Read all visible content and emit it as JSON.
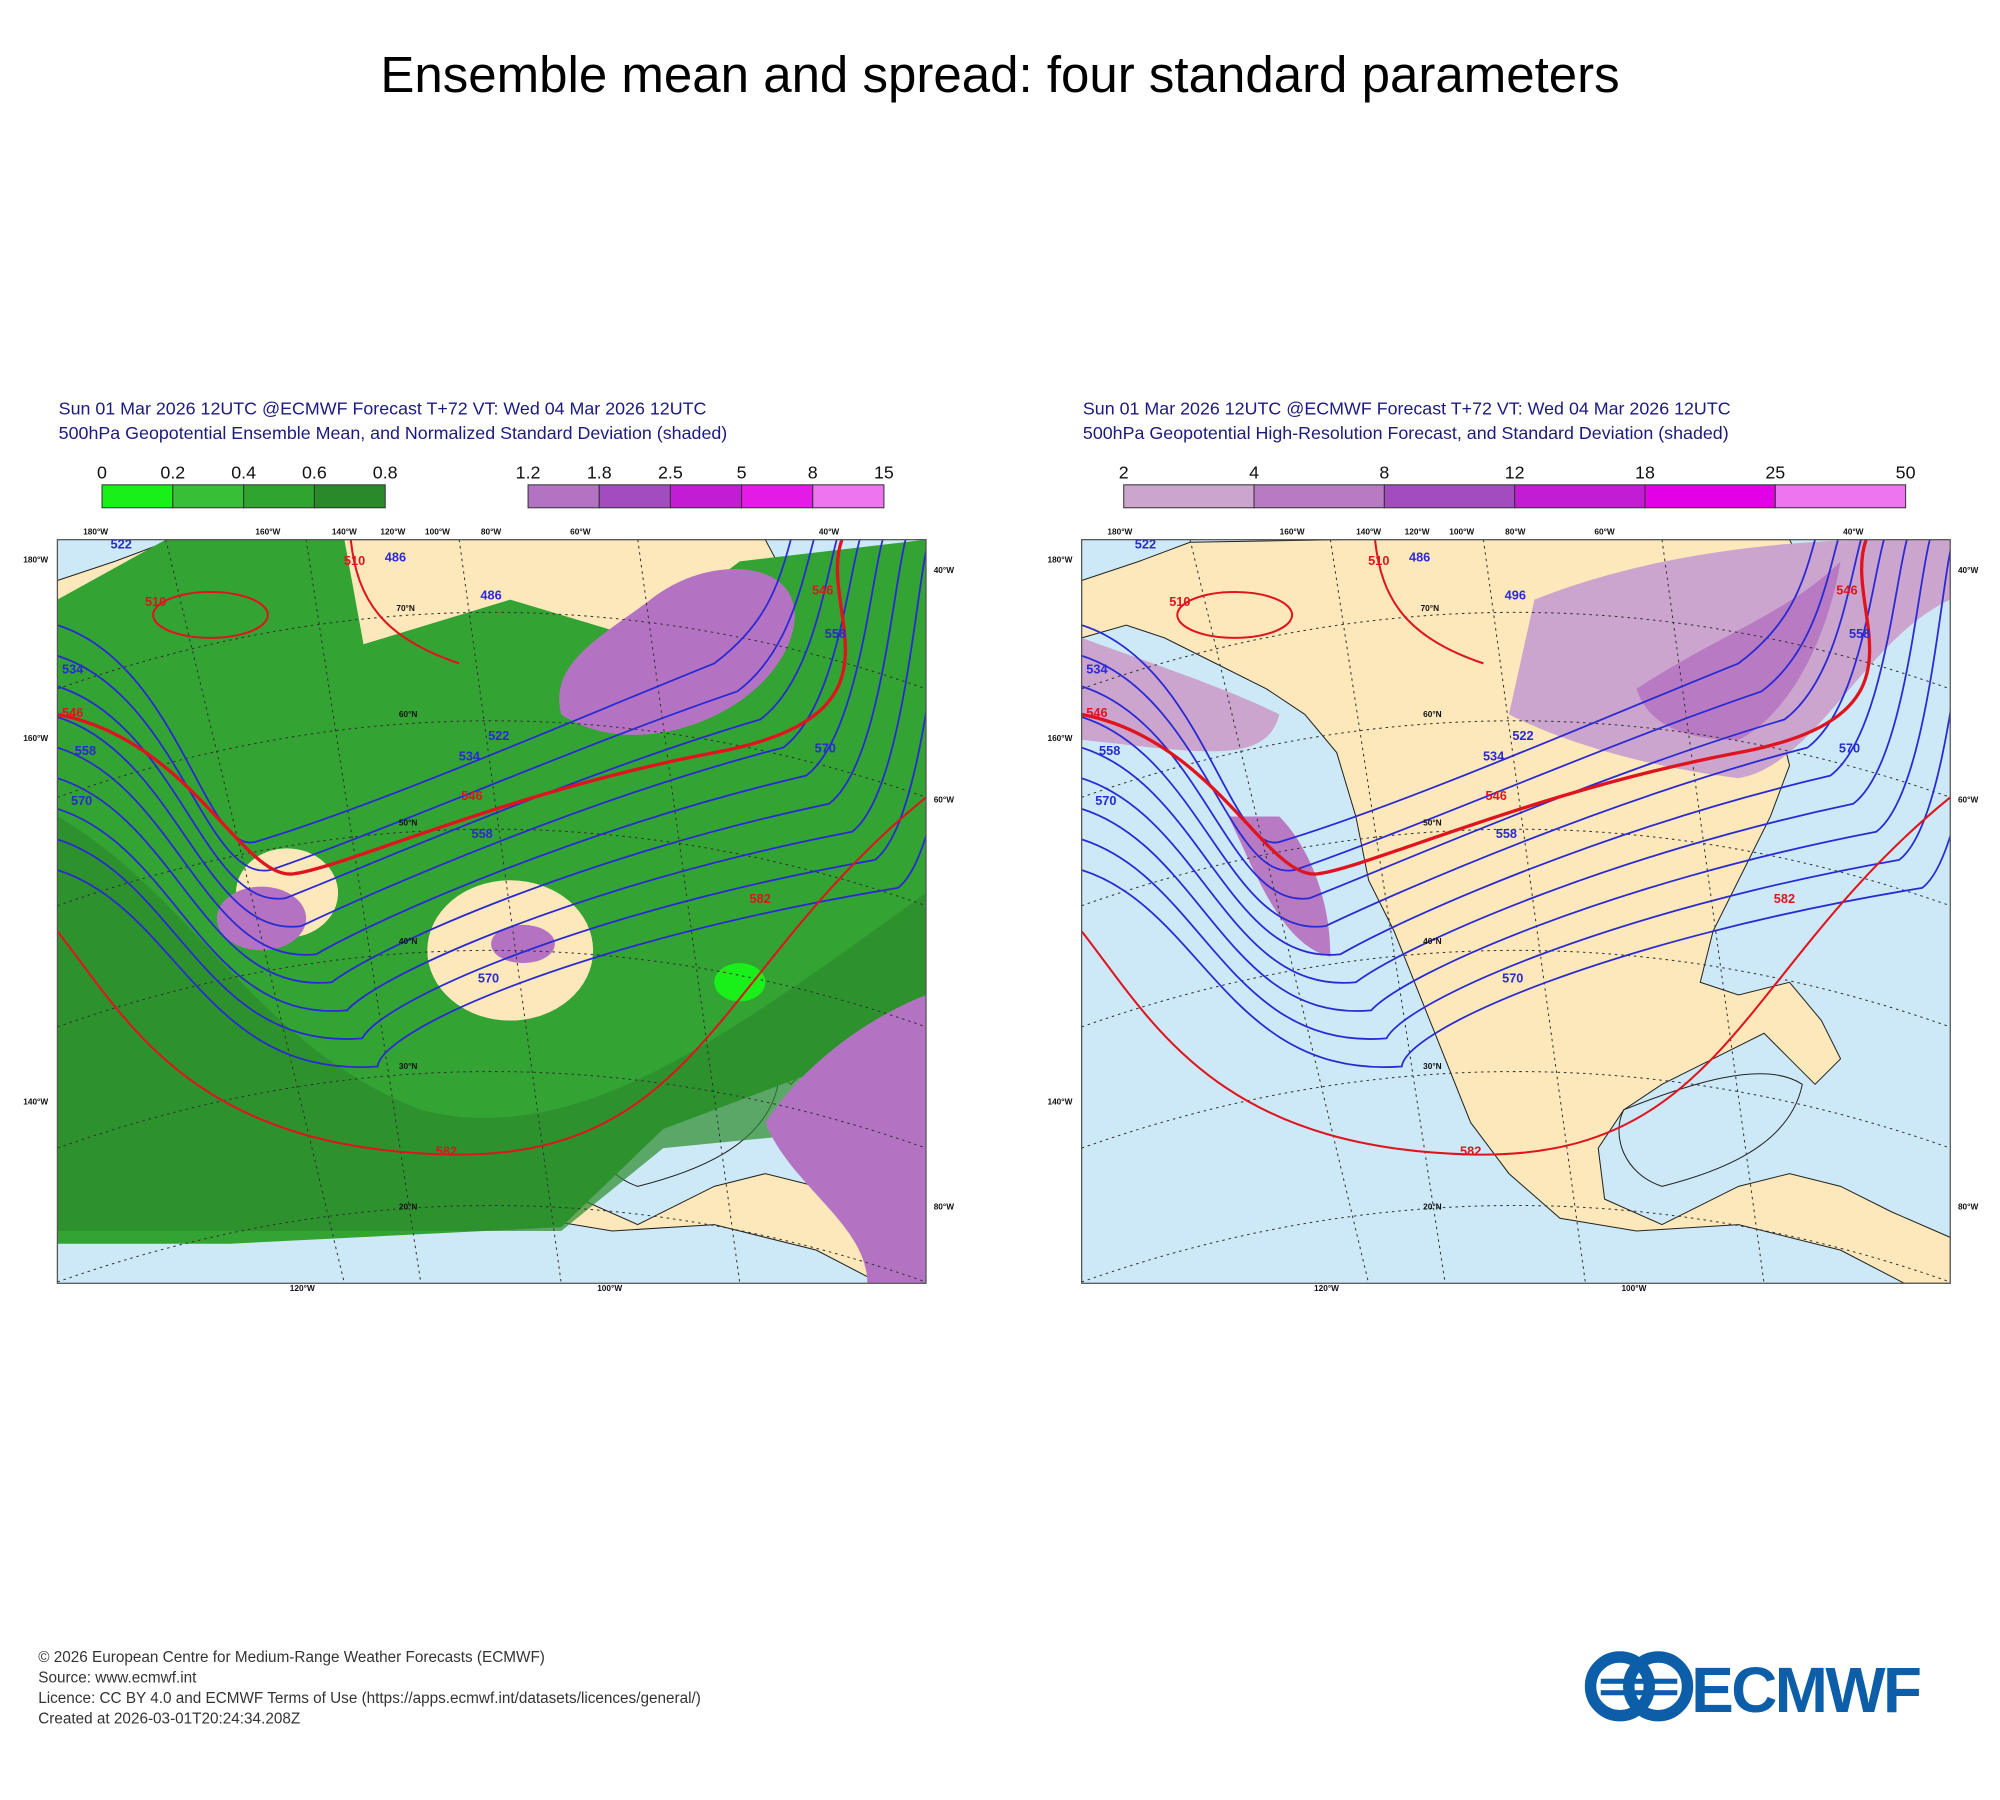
{
  "title": "Ensemble mean and spread: four standard parameters",
  "panels": [
    {
      "header": [
        "Sun 01 Mar 2026 12UTC @ECMWF Forecast T+72 VT: Wed 04 Mar 2026 12UTC",
        "500hPa Geopotential Ensemble Mean, and Normalized Standard Deviation (shaded)"
      ],
      "colorbars": [
        {
          "ticks": [
            0,
            0.2,
            0.4,
            0.6,
            0.8
          ],
          "colors": [
            "#19f019",
            "#37c037",
            "#2fa42f",
            "#2a8a2a"
          ]
        },
        {
          "ticks": [
            1.2,
            1.8,
            2.5,
            5,
            8,
            15
          ],
          "colors": [
            "#b473c2",
            "#a24cbf",
            "#c21cd4",
            "#e41ae6",
            "#ef74ef"
          ]
        }
      ],
      "contour_labels": [
        522,
        510,
        510,
        534,
        546,
        558,
        570,
        522,
        534,
        546,
        558,
        570,
        582,
        582,
        546,
        558,
        570,
        486,
        486
      ],
      "grid_labels": [
        "180°W",
        "160°W",
        "140°W",
        "120°W",
        "100°W",
        "80°W",
        "60°W",
        "40°W",
        "180°W",
        "160°W",
        "140°W",
        "40°W",
        "60°W",
        "80°W",
        "120°W",
        "100°W",
        "70°N",
        "60°N",
        "50°N",
        "40°N",
        "30°N",
        "20°N"
      ]
    },
    {
      "header": [
        "Sun 01 Mar 2026 12UTC @ECMWF Forecast T+72 VT: Wed 04 Mar 2026 12UTC",
        "500hPa Geopotential High-Resolution Forecast, and Standard Deviation (shaded)"
      ],
      "colorbars": [
        {
          "ticks": [
            2,
            4,
            8,
            12,
            18,
            25,
            50
          ],
          "colors": [
            "#cba5cd",
            "#b77ac3",
            "#a24cbf",
            "#c21cd4",
            "#e200e4",
            "#ef74ef"
          ]
        }
      ],
      "contour_labels": [
        522,
        510,
        510,
        534,
        546,
        558,
        570,
        522,
        534,
        546,
        558,
        570,
        582,
        582,
        546,
        558,
        570,
        486,
        496
      ],
      "grid_labels": [
        "180°W",
        "160°W",
        "140°W",
        "120°W",
        "100°W",
        "80°W",
        "60°W",
        "40°W",
        "180°W",
        "160°W",
        "140°W",
        "40°W",
        "60°W",
        "80°W",
        "120°W",
        "100°W",
        "70°N",
        "60°N",
        "50°N",
        "40°N",
        "30°N",
        "20°N"
      ]
    }
  ],
  "footer": [
    "© 2026 European Centre for Medium-Range Weather Forecasts (ECMWF)",
    "Source: www.ecmwf.int",
    "Licence: CC BY 4.0 and ECMWF Terms of Use (https://apps.ecmwf.int/datasets/licences/general/)",
    "Created at 2026-03-01T20:24:34.208Z"
  ],
  "logo": "ECMWF"
}
